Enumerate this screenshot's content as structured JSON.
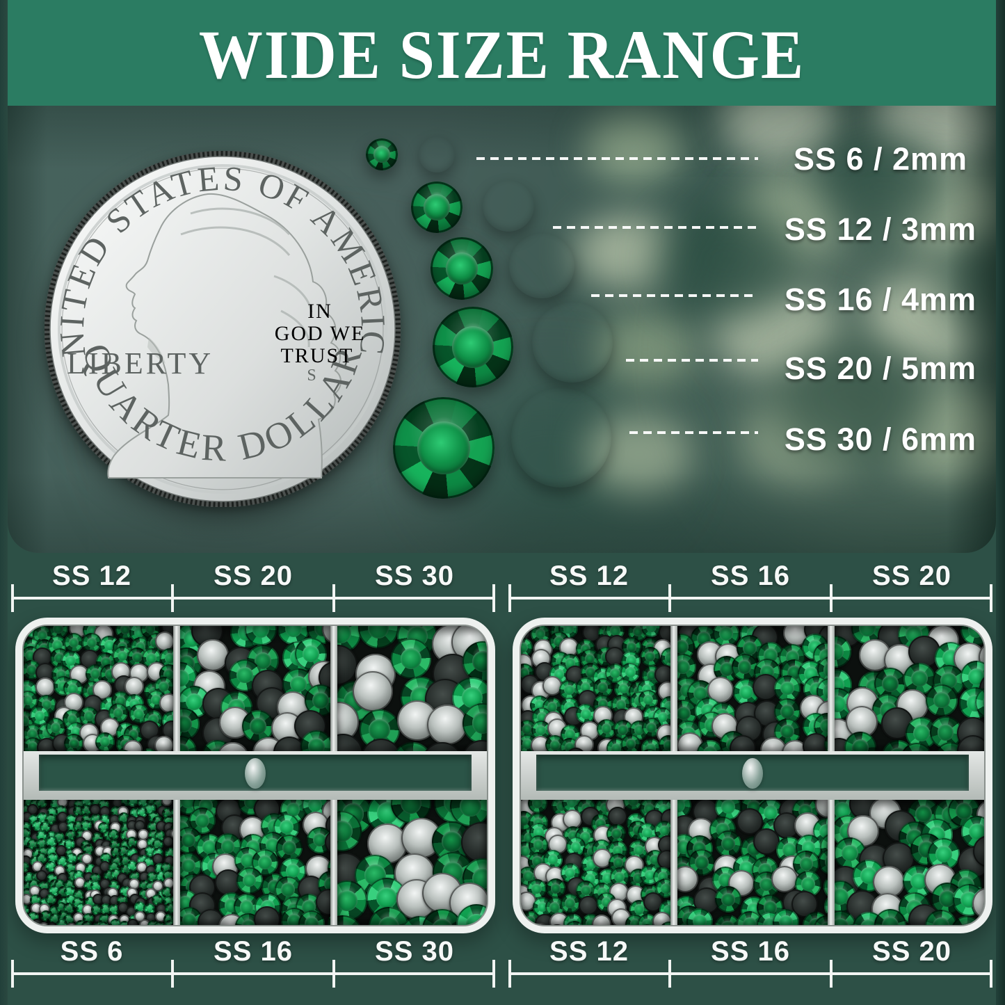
{
  "banner": {
    "title": "WIDE SIZE RANGE"
  },
  "coin": {
    "top_arc": "UNITED STATES OF AMERICA",
    "liberty": "LIBERTY",
    "motto": [
      "IN",
      "GOD WE",
      "TRUST"
    ],
    "mint_mark": "S",
    "bottom_arc": "QUARTER DOLLAR"
  },
  "size_rows": [
    {
      "ss": "SS 6",
      "mm": "2mm",
      "label": "SS 6 / 2mm"
    },
    {
      "ss": "SS 12",
      "mm": "3mm",
      "label": "SS 12 / 3mm"
    },
    {
      "ss": "SS 16",
      "mm": "4mm",
      "label": "SS 16 / 4mm"
    },
    {
      "ss": "SS 20",
      "mm": "5mm",
      "label": "SS 20 / 5mm"
    },
    {
      "ss": "SS 30",
      "mm": "6mm",
      "label": "SS 30 / 6mm"
    }
  ],
  "left_box": {
    "top_labels": [
      "SS 12",
      "SS 20",
      "SS 30"
    ],
    "bottom_labels": [
      "SS 6",
      "SS 16",
      "SS 30"
    ]
  },
  "right_box": {
    "top_labels": [
      "SS 12",
      "SS 16",
      "SS 20"
    ],
    "bottom_labels": [
      "SS 12",
      "SS 16",
      "SS 20"
    ]
  },
  "colors": {
    "banner_green": "#2b7c62",
    "page_green": "#2d5046",
    "panel_teal": "#44605a",
    "gem_green": "#0d8742",
    "silver": "#cfd4d2",
    "label_white": "#f7f9f8"
  }
}
